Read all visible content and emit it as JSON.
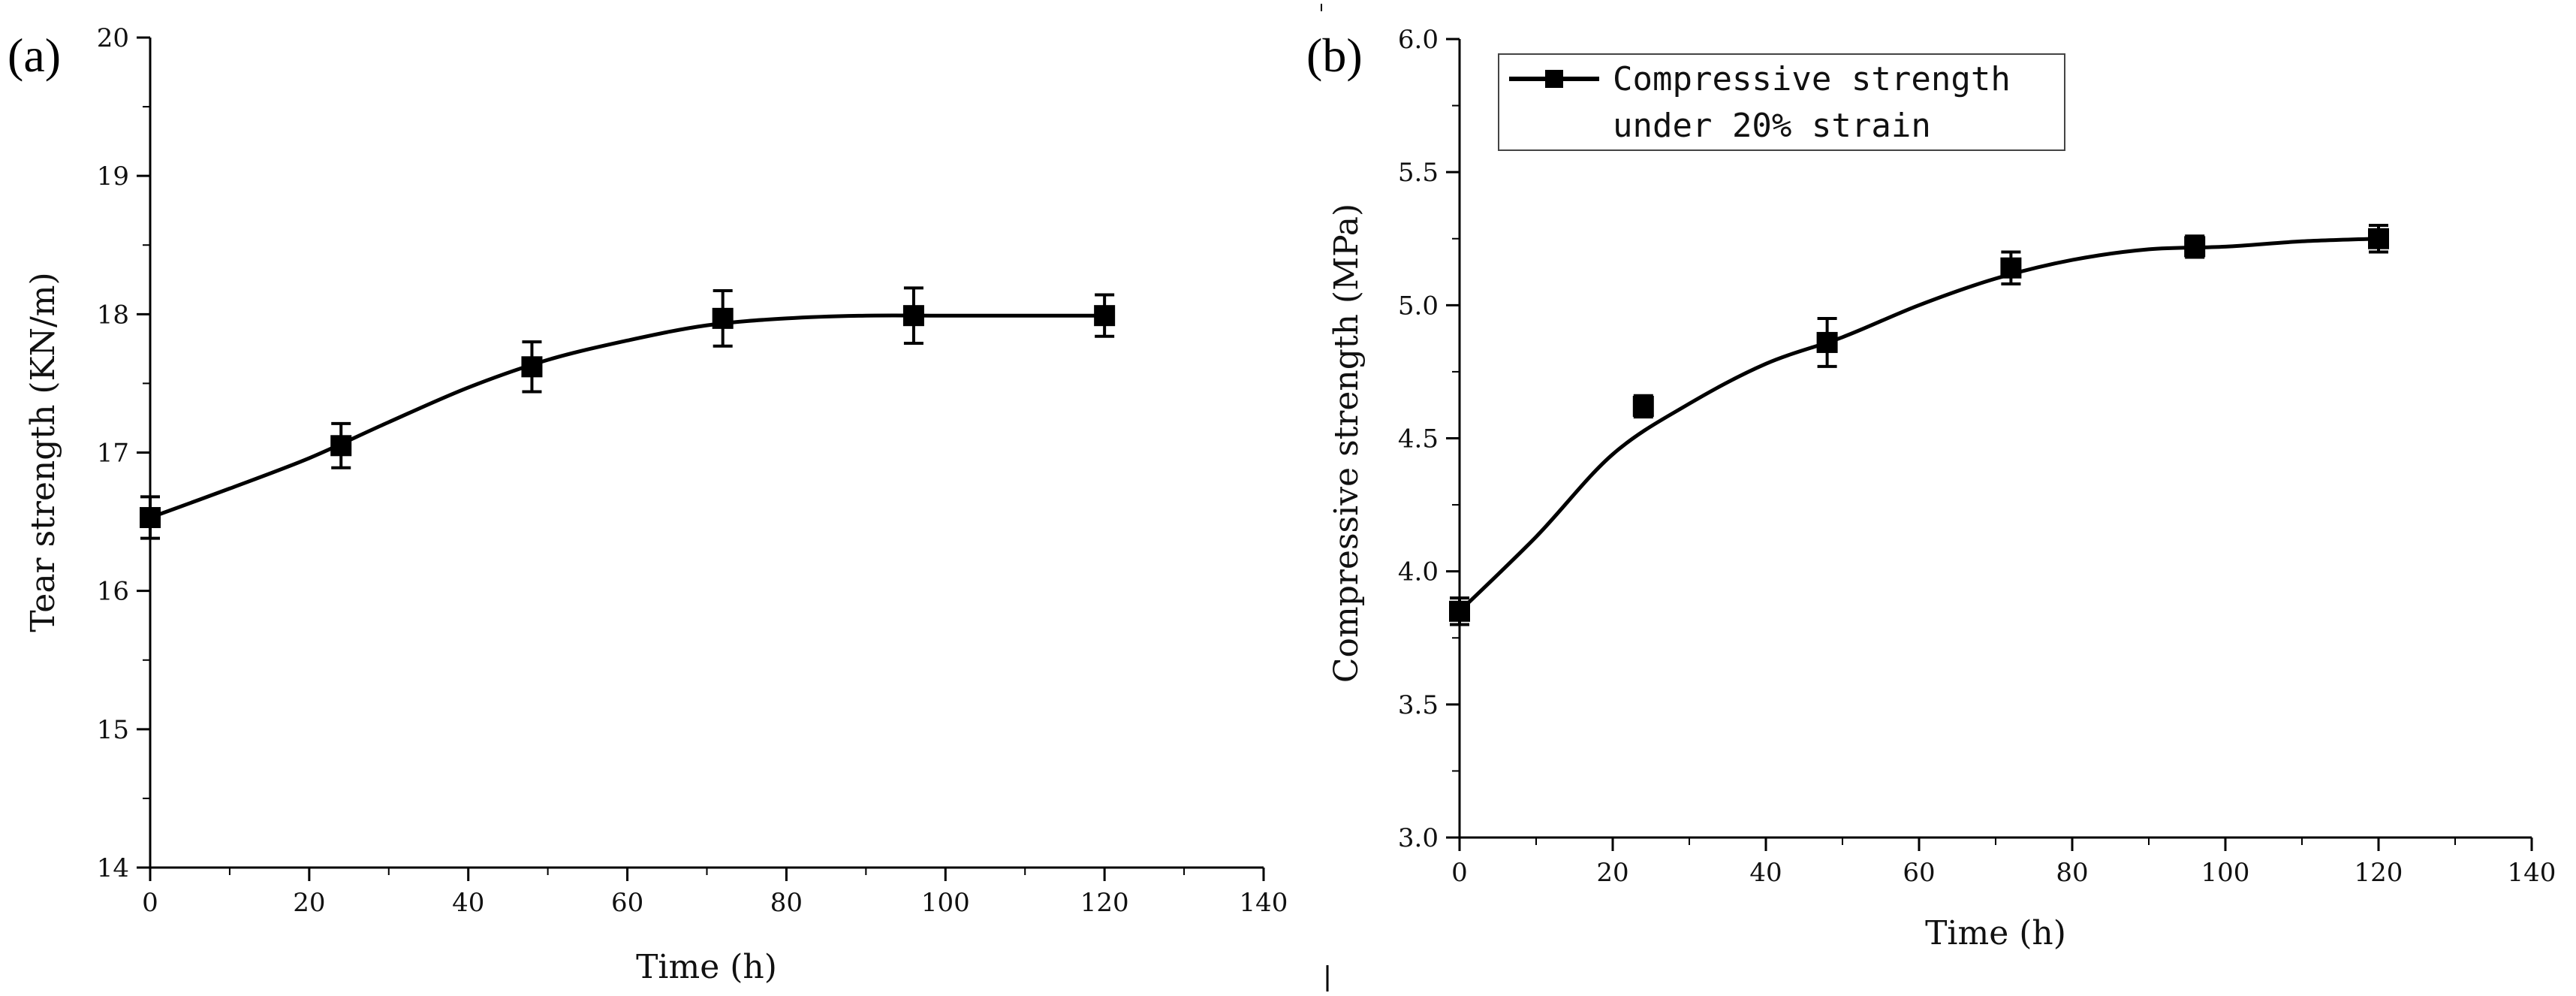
{
  "chart_data": [
    {
      "type": "line",
      "panel_label": "(a)",
      "title": "",
      "xlabel": "Time (h)",
      "ylabel": "Tear strength (KN/m)",
      "xlim": [
        0,
        140
      ],
      "ylim": [
        14,
        20
      ],
      "xticks": [
        0,
        20,
        40,
        60,
        80,
        100,
        120,
        140
      ],
      "yticks": [
        14,
        15,
        16,
        17,
        18,
        19,
        20
      ],
      "xtick_labels": [
        "0",
        "20",
        "40",
        "60",
        "80",
        "100",
        "120",
        "140"
      ],
      "ytick_labels": [
        "14",
        "15",
        "16",
        "17",
        "18",
        "19",
        "20"
      ],
      "grid": false,
      "series": [
        {
          "name": "Tear strength",
          "x": [
            0,
            24,
            48,
            72,
            96,
            120
          ],
          "y": [
            16.53,
            17.05,
            17.62,
            17.97,
            17.99,
            17.99
          ],
          "error": [
            0.15,
            0.16,
            0.18,
            0.2,
            0.2,
            0.15
          ],
          "fit_curve": {
            "x": [
              0,
              10,
              20,
              30,
              40,
              50,
              60,
              70,
              80,
              90,
              100,
              110,
              120
            ],
            "y": [
              16.53,
              16.74,
              16.96,
              17.22,
              17.47,
              17.67,
              17.81,
              17.92,
              17.97,
              17.99,
              17.99,
              17.99,
              17.99
            ]
          }
        }
      ]
    },
    {
      "type": "line",
      "panel_label": "(b)",
      "title": "",
      "xlabel": "Time (h)",
      "ylabel": "Compressive strength (MPa)",
      "xlim": [
        0,
        140
      ],
      "ylim": [
        3.0,
        6.0
      ],
      "xticks": [
        0,
        20,
        40,
        60,
        80,
        100,
        120,
        140
      ],
      "yticks": [
        3.0,
        3.5,
        4.0,
        4.5,
        5.0,
        5.5,
        6.0
      ],
      "xtick_labels": [
        "0",
        "20",
        "40",
        "60",
        "80",
        "100",
        "120",
        "140"
      ],
      "ytick_labels": [
        "3.0",
        "3.5",
        "4.0",
        "4.5",
        "5.0",
        "5.5",
        "6.0"
      ],
      "grid": false,
      "legend": {
        "position": "top-left",
        "lines": [
          "Compressive strength",
          "under 20% strain"
        ]
      },
      "series": [
        {
          "name": "Compressive strength under 20% strain",
          "x": [
            0,
            24,
            48,
            72,
            96,
            120
          ],
          "y": [
            3.85,
            4.62,
            4.86,
            5.14,
            5.22,
            5.25
          ],
          "error": [
            0.05,
            0.04,
            0.09,
            0.06,
            0.04,
            0.05
          ],
          "fit_curve": {
            "x": [
              0,
              10,
              20,
              30,
              40,
              50,
              60,
              70,
              80,
              90,
              100,
              110,
              120
            ],
            "y": [
              3.85,
              4.13,
              4.44,
              4.63,
              4.78,
              4.88,
              5.0,
              5.1,
              5.17,
              5.21,
              5.22,
              5.24,
              5.25
            ]
          }
        }
      ]
    }
  ]
}
